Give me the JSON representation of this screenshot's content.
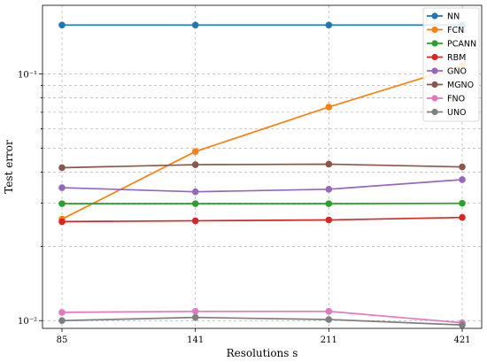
{
  "chart_data": {
    "type": "line",
    "xlabel": "Resolutions s",
    "ylabel": "Test error",
    "yscale": "log",
    "ylim": [
      0.0093,
      0.19
    ],
    "x": [
      85,
      141,
      211,
      421
    ],
    "x_tick_labels": [
      "85",
      "141",
      "211",
      "421"
    ],
    "y_ticks": [
      0.01,
      0.1
    ],
    "y_tick_labels": [
      "10⁻²",
      "10⁻¹"
    ],
    "grid": true,
    "legend_position": "top-right",
    "series": [
      {
        "name": "NN",
        "color": "#1f77b4",
        "values": [
          0.158,
          0.158,
          0.158,
          0.158
        ]
      },
      {
        "name": "FCN",
        "color": "#ff7f0e",
        "values": [
          0.0258,
          0.0485,
          0.0735,
          0.108
        ]
      },
      {
        "name": "PCANN",
        "color": "#2ca02c",
        "values": [
          0.0298,
          0.0298,
          0.0298,
          0.0299
        ]
      },
      {
        "name": "RBM",
        "color": "#d62728",
        "values": [
          0.0252,
          0.0254,
          0.0256,
          0.0262
        ]
      },
      {
        "name": "GNO",
        "color": "#9467bd",
        "values": [
          0.0346,
          0.0333,
          0.0341,
          0.0373
        ]
      },
      {
        "name": "MGNO",
        "color": "#8c564b",
        "values": [
          0.0417,
          0.0429,
          0.0431,
          0.042
        ]
      },
      {
        "name": "FNO",
        "color": "#e377c2",
        "values": [
          0.0108,
          0.0109,
          0.0109,
          0.0098
        ]
      },
      {
        "name": "UNO",
        "color": "#7f7f7f",
        "values": [
          0.01,
          0.0103,
          0.0101,
          0.0096
        ]
      }
    ]
  }
}
